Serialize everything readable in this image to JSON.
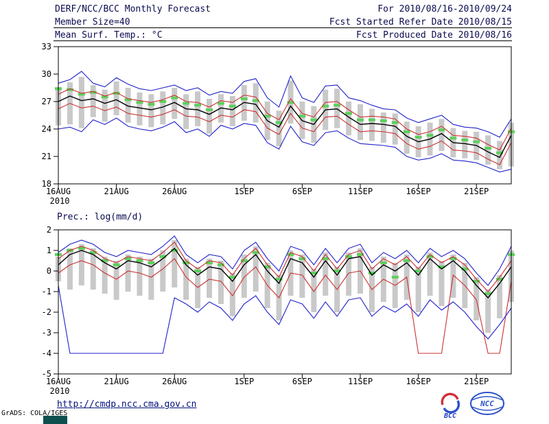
{
  "header": {
    "title": "DERF/NCC/BCC Monthly Forecast",
    "member_size": "Member Size=40",
    "for_range": "For 2010/08/16-2010/09/24",
    "refer_date": "Fcst Started Refer Date 2010/08/15",
    "produced_date": "Fcst Produced Date 2010/08/16"
  },
  "footer": {
    "url": "http://cmdp.ncc.cma.gov.cn",
    "grads_credit": "GrADS: COLA/IGES",
    "bcc_label": "BCC",
    "ncc_label": "NCC"
  },
  "colors": {
    "blue": "#2020cc",
    "red": "#cc3030",
    "black": "#000000",
    "green": "#5cd05c",
    "gray": "#c9c9c9",
    "header_text": "#0a0a50",
    "link": "#00107a",
    "teal_block": "#0e4f4f"
  },
  "chart_data": [
    {
      "type": "line",
      "title": "Mean Surf. Temp.: °C",
      "x_start": "16AUG2010",
      "x_end": "24SEP2010",
      "n_days": 40,
      "ylim": [
        18,
        33
      ],
      "yticks": [
        18,
        21,
        24,
        27,
        30,
        33
      ],
      "x_tick_indices": [
        0,
        5,
        10,
        16,
        21,
        26,
        31,
        36
      ],
      "x_tick_labels": [
        "16AUG",
        "21AUG",
        "26AUG",
        "1SEP",
        "6SEP",
        "11SEP",
        "16SEP",
        "21SEP"
      ],
      "x_year_label": "2010",
      "grid": false,
      "series": [
        {
          "name": "ensemble-max",
          "color": "blue",
          "values": [
            29.0,
            29.4,
            30.3,
            29.0,
            28.6,
            29.6,
            28.9,
            28.4,
            28.2,
            28.5,
            28.8,
            28.2,
            28.5,
            27.7,
            28.1,
            27.9,
            29.2,
            29.5,
            27.4,
            26.4,
            29.8,
            27.4,
            26.9,
            28.7,
            28.8,
            27.4,
            27.1,
            26.6,
            26.2,
            26.1,
            25.2,
            24.7,
            25.1,
            25.5,
            24.5,
            24.2,
            24.1,
            23.7,
            23.1,
            25.1
          ]
        },
        {
          "name": "upper-quartile",
          "color": "red",
          "values": [
            27.8,
            28.4,
            27.9,
            28.1,
            27.6,
            28.0,
            27.3,
            27.1,
            26.9,
            27.2,
            27.7,
            27.0,
            26.9,
            26.4,
            27.1,
            26.9,
            27.7,
            27.5,
            25.7,
            25.0,
            27.3,
            25.7,
            25.3,
            26.9,
            27.0,
            26.1,
            25.3,
            25.4,
            25.3,
            25.1,
            24.0,
            23.4,
            23.7,
            24.3,
            23.3,
            23.2,
            23.0,
            22.3,
            21.7,
            24.1
          ]
        },
        {
          "name": "ensemble-green",
          "color": "green",
          "style": "dashed",
          "values": [
            28.4,
            28.3,
            27.8,
            28.0,
            27.5,
            27.9,
            27.2,
            26.9,
            26.7,
            27.0,
            27.4,
            26.8,
            26.6,
            26.1,
            26.8,
            26.5,
            27.3,
            27.1,
            25.4,
            24.7,
            26.9,
            25.4,
            25.0,
            26.5,
            26.6,
            25.7,
            25.0,
            25.0,
            24.9,
            24.7,
            23.7,
            23.1,
            23.3,
            23.9,
            23.0,
            22.8,
            22.6,
            21.9,
            21.4,
            23.7
          ]
        },
        {
          "name": "lower-quartile",
          "color": "red",
          "values": [
            26.2,
            26.8,
            26.3,
            26.5,
            26.0,
            26.4,
            25.7,
            25.5,
            25.3,
            25.6,
            26.1,
            25.4,
            25.3,
            24.8,
            25.5,
            25.3,
            26.1,
            25.9,
            24.1,
            23.4,
            25.7,
            24.1,
            23.7,
            25.3,
            25.4,
            24.5,
            23.7,
            23.8,
            23.7,
            23.5,
            22.4,
            21.8,
            22.1,
            22.7,
            21.7,
            21.6,
            21.4,
            20.7,
            20.1,
            22.5
          ]
        },
        {
          "name": "ensemble-min",
          "color": "blue",
          "values": [
            24.0,
            24.2,
            23.7,
            25.0,
            24.5,
            25.2,
            24.3,
            24.0,
            23.8,
            24.2,
            24.8,
            23.6,
            24.0,
            23.2,
            24.4,
            24.0,
            24.6,
            24.4,
            22.5,
            21.8,
            24.3,
            22.6,
            22.2,
            23.6,
            23.8,
            23.0,
            22.4,
            22.3,
            22.2,
            22.0,
            21.0,
            20.6,
            20.8,
            21.3,
            20.6,
            20.5,
            20.3,
            19.8,
            19.3,
            19.6
          ]
        },
        {
          "name": "ensemble-mean",
          "color": "black",
          "values": [
            27.0,
            27.6,
            27.1,
            27.3,
            26.8,
            27.2,
            26.5,
            26.3,
            26.1,
            26.4,
            26.9,
            26.2,
            26.1,
            25.6,
            26.3,
            26.1,
            26.9,
            26.7,
            24.9,
            24.2,
            26.5,
            24.9,
            24.5,
            26.1,
            26.2,
            25.3,
            24.5,
            24.6,
            24.5,
            24.3,
            23.2,
            22.6,
            22.9,
            23.5,
            22.5,
            22.4,
            22.2,
            21.5,
            20.9,
            23.3
          ]
        }
      ],
      "bars": {
        "name": "ensemble-spread",
        "color": "gray",
        "top": [
          28.6,
          29.1,
          29.7,
          28.8,
          28.3,
          29.2,
          28.5,
          28.0,
          27.8,
          28.1,
          28.5,
          27.8,
          28.1,
          27.3,
          27.8,
          27.6,
          28.8,
          29.0,
          27.0,
          26.0,
          29.3,
          27.0,
          26.5,
          28.3,
          28.4,
          27.0,
          26.7,
          26.2,
          25.8,
          25.7,
          24.8,
          24.3,
          24.7,
          25.1,
          24.1,
          23.8,
          23.7,
          23.3,
          22.7,
          24.7
        ],
        "bottom": [
          24.4,
          24.5,
          24.1,
          25.3,
          24.8,
          25.5,
          24.7,
          24.4,
          24.2,
          24.5,
          25.1,
          24.0,
          24.3,
          23.5,
          24.7,
          24.3,
          24.9,
          24.7,
          22.8,
          22.1,
          24.6,
          22.9,
          22.5,
          23.9,
          24.1,
          23.3,
          22.8,
          22.7,
          22.5,
          22.3,
          21.3,
          20.9,
          21.1,
          21.6,
          20.9,
          20.8,
          20.6,
          20.1,
          19.6,
          19.9
        ]
      }
    },
    {
      "type": "line",
      "title": "Prec.: log(mm/d)",
      "x_start": "16AUG2010",
      "x_end": "24SEP2010",
      "n_days": 40,
      "ylim": [
        -5,
        2
      ],
      "yticks": [
        -5,
        -4,
        -3,
        -2,
        -1,
        0,
        1,
        2
      ],
      "x_tick_indices": [
        0,
        5,
        10,
        16,
        21,
        26,
        31,
        36
      ],
      "x_tick_labels": [
        "16AUG",
        "21AUG",
        "26AUG",
        "1SEP",
        "6SEP",
        "11SEP",
        "16SEP",
        "21SEP"
      ],
      "x_year_label": "2010",
      "grid": false,
      "series": [
        {
          "name": "ensemble-max",
          "color": "blue",
          "values": [
            0.9,
            1.3,
            1.5,
            1.3,
            0.9,
            0.7,
            1.0,
            0.9,
            0.8,
            1.2,
            1.7,
            0.8,
            0.4,
            0.8,
            0.7,
            0.1,
            1.0,
            1.4,
            0.6,
            0.0,
            1.2,
            1.0,
            0.3,
            1.1,
            0.4,
            1.1,
            1.3,
            0.4,
            0.9,
            0.6,
            1.0,
            0.4,
            1.1,
            0.7,
            1.0,
            0.6,
            -0.1,
            -0.7,
            0.1,
            1.2
          ]
        },
        {
          "name": "upper-quartile",
          "color": "red",
          "values": [
            0.6,
            1.0,
            1.2,
            1.0,
            0.6,
            0.4,
            0.7,
            0.6,
            0.5,
            0.9,
            1.4,
            0.5,
            0.1,
            0.5,
            0.4,
            -0.2,
            0.6,
            1.1,
            0.3,
            -0.3,
            0.9,
            0.7,
            0.0,
            0.8,
            0.1,
            0.8,
            1.0,
            0.1,
            0.6,
            0.3,
            0.7,
            0.1,
            0.8,
            0.4,
            0.7,
            0.3,
            -0.4,
            -1.0,
            -0.3,
            0.5
          ]
        },
        {
          "name": "ensemble-green",
          "color": "green",
          "style": "dashed",
          "values": [
            0.8,
            1.0,
            1.1,
            0.9,
            0.5,
            0.3,
            0.6,
            0.5,
            0.4,
            0.7,
            1.0,
            0.4,
            0.0,
            0.4,
            0.3,
            -0.3,
            0.5,
            0.9,
            0.2,
            -0.4,
            0.8,
            0.6,
            -0.1,
            0.6,
            0.0,
            0.7,
            0.8,
            -0.1,
            0.4,
            -0.3,
            0.5,
            0.0,
            0.7,
            0.2,
            0.6,
            0.1,
            -0.5,
            -1.1,
            -0.4,
            0.8
          ]
        },
        {
          "name": "lower-quartile",
          "color": "red",
          "values": [
            -0.1,
            0.3,
            0.5,
            0.3,
            -0.1,
            -0.4,
            0.0,
            -0.1,
            -0.3,
            0.1,
            0.6,
            -0.3,
            -0.8,
            -0.4,
            -0.5,
            -1.2,
            -0.3,
            0.2,
            -0.7,
            -1.3,
            -0.1,
            -0.2,
            -1.0,
            -0.2,
            -0.9,
            -0.1,
            0.0,
            -0.9,
            -0.4,
            -0.7,
            -0.3,
            -4.0,
            -4.0,
            -4.0,
            -0.2,
            -0.7,
            -1.4,
            -4.0,
            -4.0,
            -0.5
          ]
        },
        {
          "name": "ensemble-min",
          "color": "blue",
          "values": [
            -0.7,
            -4.0,
            -4.0,
            -4.0,
            -4.0,
            -4.0,
            -4.0,
            -4.0,
            -4.0,
            -4.0,
            -1.3,
            -1.6,
            -2.0,
            -1.5,
            -1.8,
            -2.4,
            -1.6,
            -1.2,
            -2.0,
            -2.6,
            -1.4,
            -1.6,
            -2.3,
            -1.5,
            -2.2,
            -1.4,
            -1.3,
            -2.2,
            -1.7,
            -2.0,
            -1.6,
            -2.2,
            -1.4,
            -1.9,
            -1.5,
            -2.0,
            -2.7,
            -3.3,
            -2.6,
            -1.8
          ]
        },
        {
          "name": "ensemble-mean",
          "color": "black",
          "values": [
            0.3,
            0.8,
            1.0,
            0.8,
            0.4,
            0.1,
            0.5,
            0.4,
            0.2,
            0.6,
            1.1,
            0.3,
            -0.2,
            0.2,
            0.1,
            -0.5,
            0.3,
            0.8,
            0.0,
            -0.6,
            0.6,
            0.4,
            -0.3,
            0.5,
            -0.2,
            0.6,
            0.7,
            -0.2,
            0.3,
            0.0,
            0.4,
            -0.2,
            0.6,
            0.1,
            0.5,
            0.0,
            -0.7,
            -1.3,
            -0.6,
            0.2
          ]
        }
      ],
      "bars": {
        "name": "ensemble-spread",
        "color": "gray",
        "top": [
          0.7,
          1.1,
          1.3,
          1.1,
          0.7,
          0.5,
          0.8,
          0.7,
          0.6,
          1.0,
          1.5,
          0.6,
          0.2,
          0.6,
          0.5,
          -0.1,
          0.8,
          1.2,
          0.4,
          -0.2,
          1.0,
          0.8,
          0.1,
          0.9,
          0.2,
          0.9,
          1.1,
          0.2,
          0.7,
          0.4,
          0.8,
          0.2,
          0.9,
          0.5,
          0.8,
          0.4,
          -0.3,
          -0.9,
          -0.2,
          1.0
        ],
        "bottom": [
          -0.5,
          -0.9,
          -0.7,
          -0.9,
          -1.1,
          -1.4,
          -1.0,
          -1.2,
          -1.4,
          -1.0,
          -0.8,
          -1.4,
          -1.8,
          -1.3,
          -1.6,
          -2.2,
          -1.3,
          -1.0,
          -1.8,
          -2.4,
          -1.2,
          -1.3,
          -2.0,
          -1.2,
          -2.0,
          -1.2,
          -1.1,
          -2.0,
          -1.5,
          -1.8,
          -1.4,
          -2.0,
          -1.2,
          -1.7,
          -1.3,
          -1.8,
          -2.4,
          -3.0,
          -2.3,
          -1.5
        ]
      }
    }
  ]
}
